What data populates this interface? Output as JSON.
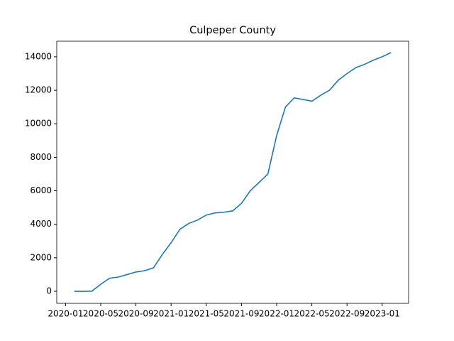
{
  "chart_data": {
    "type": "line",
    "title": "Culpeper County",
    "x": [
      "2020-02",
      "2020-03",
      "2020-04",
      "2020-05",
      "2020-06",
      "2020-07",
      "2020-08",
      "2020-09",
      "2020-10",
      "2020-11",
      "2020-12",
      "2021-01",
      "2021-02",
      "2021-03",
      "2021-04",
      "2021-05",
      "2021-06",
      "2021-07",
      "2021-08",
      "2021-09",
      "2021-10",
      "2021-11",
      "2021-12",
      "2022-01",
      "2022-02",
      "2022-03",
      "2022-04",
      "2022-05",
      "2022-06",
      "2022-07",
      "2022-08",
      "2022-09",
      "2022-10",
      "2022-11",
      "2022-12",
      "2023-01",
      "2023-02"
    ],
    "series": [
      {
        "color": "#1f77b4",
        "values": [
          0,
          0,
          10,
          420,
          780,
          850,
          1000,
          1150,
          1230,
          1400,
          2200,
          2900,
          3700,
          4050,
          4250,
          4550,
          4680,
          4720,
          4800,
          5250,
          6000,
          6500,
          7000,
          9300,
          11000,
          11550,
          11450,
          11350,
          11700,
          12000,
          12600,
          13000,
          13350,
          13550,
          13800,
          14000,
          14250
        ]
      }
    ],
    "xlim": [
      "2019-12",
      "2023-04"
    ],
    "xticks": [
      "2020-01",
      "2020-05",
      "2020-09",
      "2021-01",
      "2021-05",
      "2021-09",
      "2022-01",
      "2022-05",
      "2022-09",
      "2023-01"
    ],
    "ylim": [
      -720,
      14930
    ],
    "yticks": [
      0,
      2000,
      4000,
      6000,
      8000,
      10000,
      12000,
      14000
    ]
  }
}
